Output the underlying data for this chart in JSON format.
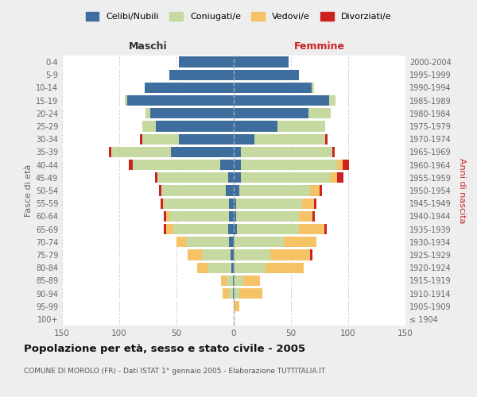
{
  "age_groups": [
    "100+",
    "95-99",
    "90-94",
    "85-89",
    "80-84",
    "75-79",
    "70-74",
    "65-69",
    "60-64",
    "55-59",
    "50-54",
    "45-49",
    "40-44",
    "35-39",
    "30-34",
    "25-29",
    "20-24",
    "15-19",
    "10-14",
    "5-9",
    "0-4"
  ],
  "birth_years": [
    "≤ 1904",
    "1905-1909",
    "1910-1914",
    "1915-1919",
    "1920-1924",
    "1925-1929",
    "1930-1934",
    "1935-1939",
    "1940-1944",
    "1945-1949",
    "1950-1954",
    "1955-1959",
    "1960-1964",
    "1965-1969",
    "1970-1974",
    "1975-1979",
    "1980-1984",
    "1985-1989",
    "1990-1994",
    "1995-1999",
    "2000-2004"
  ],
  "colors": {
    "celibi": "#3d6e9e",
    "coniugati": "#c5d9a0",
    "vedovi": "#f5c265",
    "divorziati": "#cc2222"
  },
  "males": {
    "celibi": [
      0,
      0,
      1,
      1,
      2,
      3,
      4,
      5,
      4,
      4,
      7,
      5,
      12,
      55,
      48,
      68,
      73,
      93,
      78,
      56,
      48
    ],
    "coniugati": [
      0,
      0,
      3,
      5,
      20,
      25,
      38,
      48,
      52,
      57,
      56,
      62,
      76,
      52,
      32,
      12,
      4,
      2,
      0,
      0,
      0
    ],
    "vedovi": [
      0,
      0,
      6,
      5,
      10,
      12,
      8,
      6,
      3,
      1,
      0,
      0,
      0,
      0,
      0,
      0,
      0,
      0,
      0,
      0,
      0
    ],
    "divorziati": [
      0,
      0,
      0,
      0,
      0,
      0,
      0,
      2,
      2,
      2,
      2,
      2,
      4,
      2,
      2,
      0,
      0,
      0,
      0,
      0,
      0
    ]
  },
  "females": {
    "celibi": [
      0,
      0,
      0,
      0,
      0,
      0,
      0,
      3,
      2,
      2,
      5,
      6,
      6,
      6,
      18,
      38,
      65,
      83,
      68,
      57,
      48
    ],
    "coniugati": [
      0,
      0,
      5,
      8,
      28,
      32,
      44,
      54,
      55,
      58,
      62,
      78,
      84,
      80,
      62,
      42,
      20,
      6,
      2,
      0,
      0
    ],
    "vedovi": [
      0,
      5,
      20,
      15,
      33,
      35,
      28,
      22,
      12,
      10,
      8,
      6,
      5,
      0,
      0,
      0,
      0,
      0,
      0,
      0,
      0
    ],
    "divorziati": [
      0,
      0,
      0,
      0,
      0,
      2,
      0,
      2,
      2,
      2,
      2,
      6,
      6,
      2,
      2,
      0,
      0,
      0,
      0,
      0,
      0
    ]
  },
  "title": "Popolazione per età, sesso e stato civile - 2005",
  "subtitle": "COMUNE DI MOROLO (FR) - Dati ISTAT 1° gennaio 2005 - Elaborazione TUTTITALIA.IT",
  "xlabel_left": "Maschi",
  "xlabel_right": "Femmine",
  "ylabel_left": "Fasce di età",
  "ylabel_right": "Anni di nascita",
  "xlim": 150,
  "bg_color": "#eeeeee",
  "plot_bg": "#ffffff",
  "legend_labels": [
    "Celibi/Nubili",
    "Coniugati/e",
    "Vedovi/e",
    "Divorziati/e"
  ]
}
